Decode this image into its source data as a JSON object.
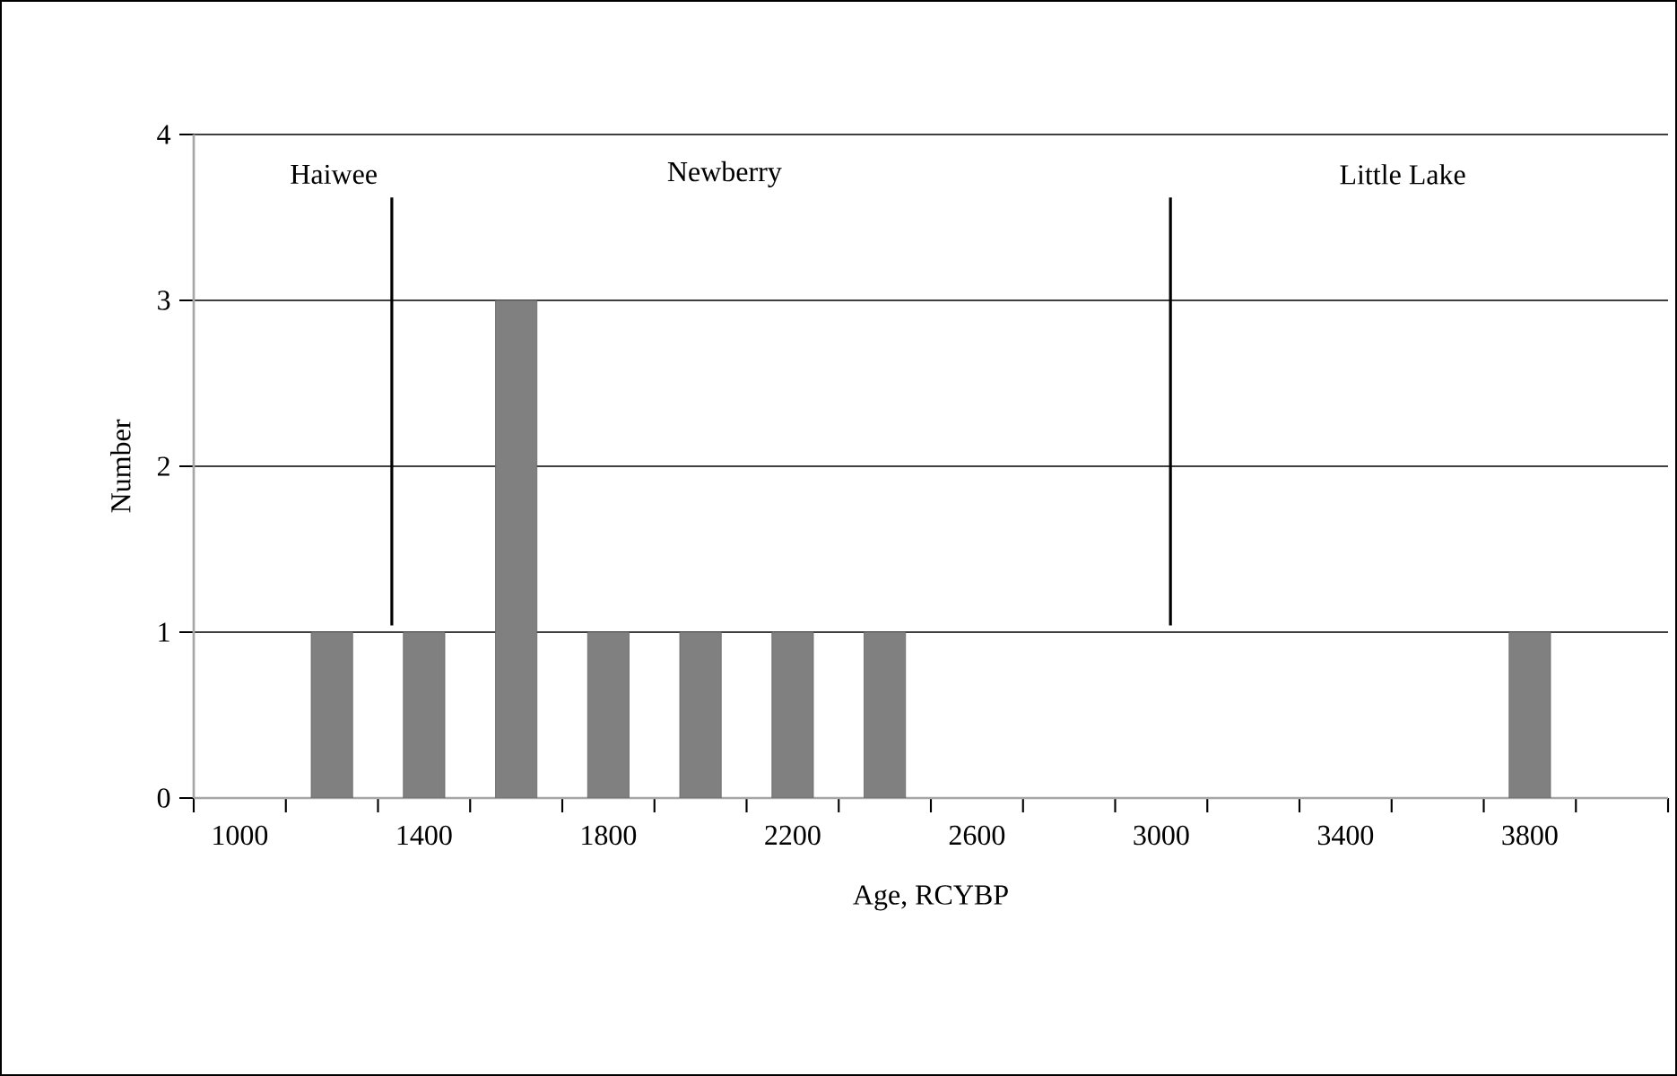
{
  "chart_data": {
    "type": "bar",
    "xlabel": "Age, RCYBP",
    "ylabel": "Number",
    "x": [
      1200,
      1400,
      1600,
      1800,
      2000,
      2200,
      2400,
      3800
    ],
    "values": [
      1,
      1,
      3,
      1,
      1,
      1,
      1,
      1
    ],
    "color": "#808080",
    "xlim": [
      900,
      4100
    ],
    "xticks": [
      {
        "value": 900,
        "label": null
      },
      {
        "value": 1000,
        "label": "1000"
      },
      {
        "value": 1100,
        "label": null
      },
      {
        "value": 1300,
        "label": null
      },
      {
        "value": 1400,
        "label": "1400"
      },
      {
        "value": 1500,
        "label": null
      },
      {
        "value": 1700,
        "label": null
      },
      {
        "value": 1800,
        "label": "1800"
      },
      {
        "value": 1900,
        "label": null
      },
      {
        "value": 2100,
        "label": null
      },
      {
        "value": 2200,
        "label": "2200"
      },
      {
        "value": 2300,
        "label": null
      },
      {
        "value": 2500,
        "label": null
      },
      {
        "value": 2600,
        "label": "2600"
      },
      {
        "value": 2700,
        "label": null
      },
      {
        "value": 2900,
        "label": null
      },
      {
        "value": 3000,
        "label": "3000"
      },
      {
        "value": 3100,
        "label": null
      },
      {
        "value": 3300,
        "label": null
      },
      {
        "value": 3400,
        "label": "3400"
      },
      {
        "value": 3500,
        "label": null
      },
      {
        "value": 3700,
        "label": null
      },
      {
        "value": 3800,
        "label": "3800"
      },
      {
        "value": 3900,
        "label": null
      },
      {
        "value": 4100,
        "label": null
      }
    ],
    "ylim": [
      0,
      4
    ],
    "yticks": [
      0,
      1,
      2,
      3,
      4
    ],
    "grid": "y",
    "ref_lines": [
      {
        "axis": "x",
        "value": 1330,
        "color": "#000000"
      },
      {
        "axis": "x",
        "value": 3020,
        "color": "#000000"
      }
    ],
    "annotations": [
      "Haiwee",
      "Newberry",
      "Little Lake"
    ]
  }
}
